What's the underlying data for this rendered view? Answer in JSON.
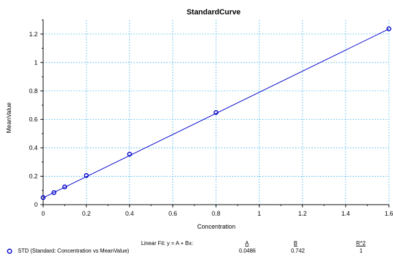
{
  "chart_data": {
    "type": "scatter",
    "title": "StandardCurve",
    "xlabel": "Concentration",
    "ylabel": "MeanValue",
    "xlim": [
      0,
      1.6
    ],
    "ylim": [
      0,
      1.3
    ],
    "x_ticks": [
      0,
      0.2,
      0.4,
      0.6,
      0.8,
      1,
      1.2,
      1.4,
      1.6
    ],
    "x_tick_labels": [
      "0",
      "0.2",
      "0.4",
      "0.6",
      "0.8",
      "1",
      "1.2",
      "1.4",
      "1.6"
    ],
    "y_ticks": [
      0,
      0.2,
      0.4,
      0.6,
      0.8,
      1,
      1.2
    ],
    "y_tick_labels": [
      "0",
      "0.2",
      "0.4",
      "0.6",
      "0.8",
      "1",
      "1.2"
    ],
    "grid": true,
    "series": [
      {
        "name": "STD (Standard: Concentration vs MeanValue)",
        "x": [
          0,
          0.05,
          0.1,
          0.2,
          0.4,
          0.8,
          1.6
        ],
        "y": [
          0.05,
          0.085,
          0.125,
          0.205,
          0.355,
          0.648,
          1.237
        ]
      }
    ],
    "fit": {
      "type": "linear",
      "A": 0.0486,
      "B": 0.742
    },
    "colors": {
      "series": "#0000cc",
      "grid": "#55bbee",
      "axis": "#000000"
    }
  },
  "fit_table": {
    "header_label": "Linear Fit: y = A + Bx:",
    "col_a": "A",
    "col_b": "B",
    "col_r2": "R^2",
    "row_label": "STD (Standard: Concentration vs MeanValue)",
    "val_a": "0.0486",
    "val_b": "0.742",
    "val_r2": "1"
  }
}
